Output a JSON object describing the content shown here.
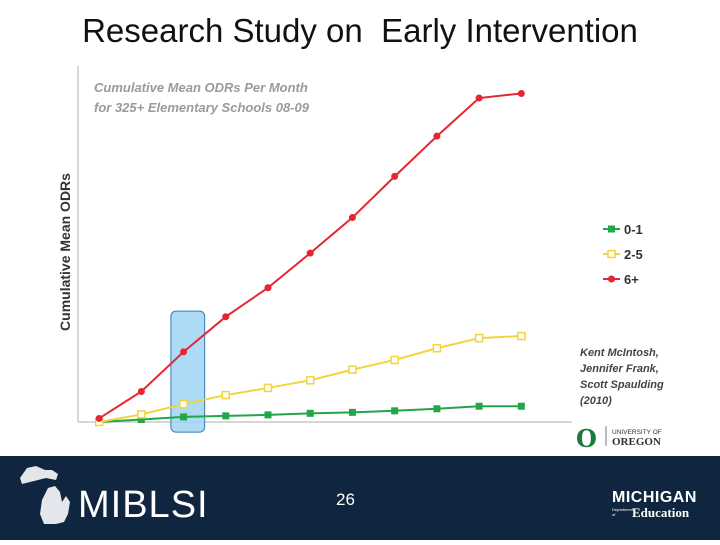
{
  "slide": {
    "title": "Research Study on  Early Intervention",
    "page_number": "26"
  },
  "chart_data": {
    "type": "line",
    "title_lines": [
      "Cumulative Mean ODRs Per Month",
      "for 325+ Elementary Schools 08-09"
    ],
    "ylabel": "Cumulative Mean ODRs",
    "xlabel": "",
    "x": [
      1,
      2,
      3,
      4,
      5,
      6,
      7,
      8,
      9,
      10,
      11
    ],
    "ylim": [
      0,
      7
    ],
    "xlim": [
      0.5,
      12.2
    ],
    "grid": false,
    "series": [
      {
        "name": "0-1",
        "color": "#22a64a",
        "marker": "square",
        "values": [
          0.0,
          0.05,
          0.1,
          0.12,
          0.14,
          0.17,
          0.19,
          0.22,
          0.26,
          0.31,
          0.31
        ]
      },
      {
        "name": "2-5",
        "color": "#f2d43c",
        "marker": "square",
        "values": [
          0.0,
          0.15,
          0.35,
          0.53,
          0.67,
          0.82,
          1.03,
          1.22,
          1.45,
          1.65,
          1.69
        ]
      },
      {
        "name": "6+",
        "color": "#e52630",
        "marker": "circle",
        "values": [
          0.07,
          0.6,
          1.38,
          2.07,
          2.64,
          3.32,
          4.02,
          4.83,
          5.62,
          6.37,
          6.46
        ]
      }
    ],
    "legend_position": "right",
    "highlight": {
      "x_from": 2.7,
      "x_to": 3.5
    },
    "citation": [
      "Kent McIntosh,",
      "Jennifer Frank,",
      "Scott Spaulding",
      "(2010)"
    ],
    "axis_color": "#c8c8c8",
    "highlight_color": "#9fd3f3"
  },
  "logos": {
    "oregon_letter": "O",
    "oregon_top": "UNIVERSITY OF",
    "oregon_bottom": "OREGON",
    "miblsi": "MIBLSI",
    "michigan": "MICHIGAN",
    "michigan_dept": "Department of",
    "michigan_education": "Education"
  }
}
